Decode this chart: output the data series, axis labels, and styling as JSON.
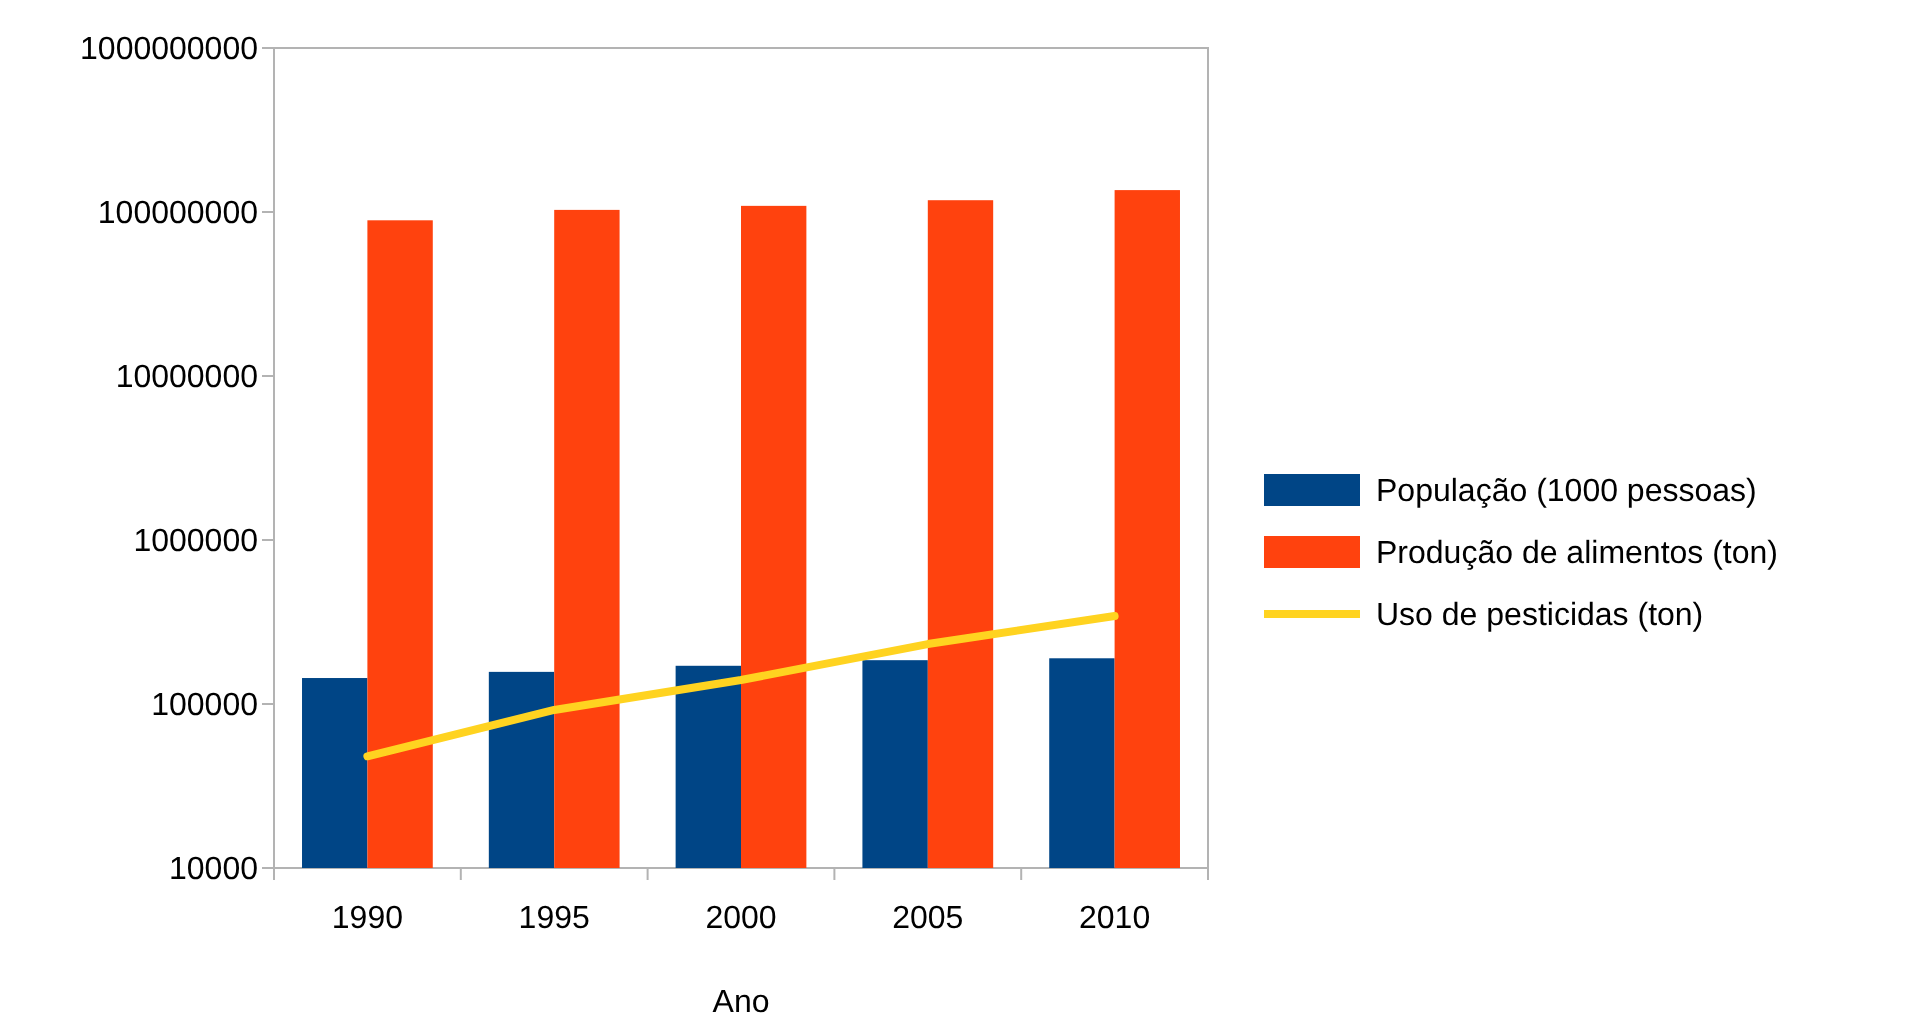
{
  "chart_data": {
    "type": "bar",
    "xlabel": "Ano",
    "categories": [
      "1990",
      "1995",
      "2000",
      "2005",
      "2010"
    ],
    "series": [
      {
        "name": "População (1000 pessoas)",
        "color": "#004586",
        "values": [
          144000,
          157000,
          171000,
          185000,
          190000
        ]
      },
      {
        "name": "Produção de alimentos (ton)",
        "color": "#ff420e",
        "values": [
          89000000,
          103000000,
          109000000,
          118000000,
          136000000
        ]
      },
      {
        "name": "Uso de pesticidas (ton)",
        "type": "line",
        "color": "#ffd320",
        "values": [
          48000,
          92000,
          140000,
          232000,
          344000
        ]
      }
    ],
    "log": true,
    "ylim": [
      10000,
      1000000000
    ],
    "yticks": [
      10000,
      100000,
      1000000,
      10000000,
      100000000,
      1000000000
    ],
    "grid": false,
    "legend": "right",
    "marker": "none",
    "line_style": "solid"
  }
}
